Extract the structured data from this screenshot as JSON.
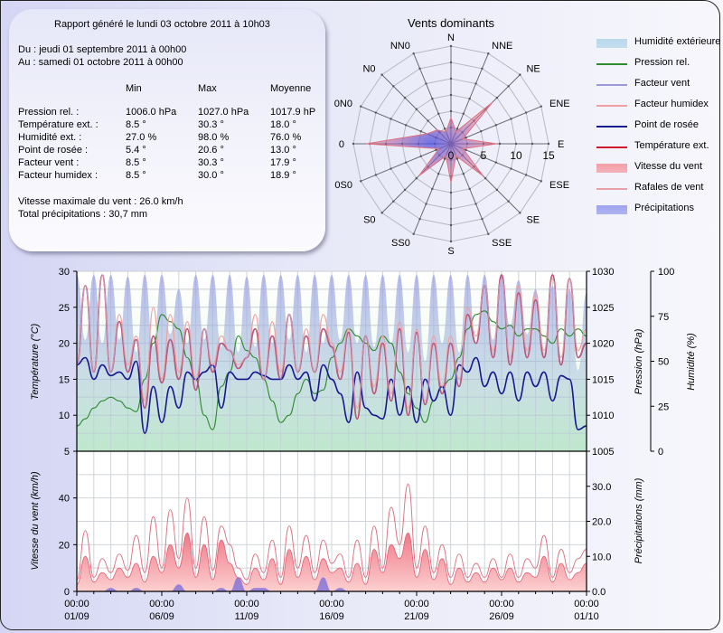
{
  "report": {
    "title": "Rapport généré le lundi 03 octobre 2011 à 10h03",
    "from": "Du : jeudi 01 septembre 2011 à 00h00",
    "to": "Au : samedi 01 octobre 2011 à 00h00",
    "columns": [
      "Min",
      "Max",
      "Moyenne"
    ],
    "rows": [
      {
        "label": "Pression rel. :",
        "min": "1006.0 hPa",
        "max": "1027.0 hPa",
        "avg": "1017.9 hPa"
      },
      {
        "label": "Température ext. :",
        "min": "8.5 °",
        "max": "30.3 °",
        "avg": "18.0 °"
      },
      {
        "label": "Humidité ext. :",
        "min": "27.0 %",
        "max": "98.0 %",
        "avg": "76.0 %"
      },
      {
        "label": "Point de rosée :",
        "min": "5.4 °",
        "max": "20.6 °",
        "avg": "13.0 °"
      },
      {
        "label": "Facteur vent :",
        "min": "8.5 °",
        "max": "30.3 °",
        "avg": "17.9 °"
      },
      {
        "label": "Facteur humidex :",
        "min": "8.5 °",
        "max": "30.0 °",
        "avg": "18.9 °"
      }
    ],
    "max_wind": "Vitesse maximale du vent : 26.0 km/h",
    "total_rain": "Total précipitations : 30,7 mm"
  },
  "legend": [
    {
      "label": "Humidité extérieure",
      "kind": "area",
      "color": "#b8d8ec"
    },
    {
      "label": "Pression rel.",
      "kind": "line",
      "color": "#2e8b2e"
    },
    {
      "label": "Facteur vent",
      "kind": "line",
      "color": "#9a9ad8"
    },
    {
      "label": "Facteur humidex",
      "kind": "line",
      "color": "#f0a0a0"
    },
    {
      "label": "Point de rosée",
      "kind": "line",
      "color": "#1a1a90"
    },
    {
      "label": "Température ext.",
      "kind": "line",
      "color": "#d01830"
    },
    {
      "label": "Vitesse du vent",
      "kind": "area",
      "color": "#f4a0a8"
    },
    {
      "label": "Rafales de vent",
      "kind": "line",
      "color": "#e8a0a8"
    },
    {
      "label": "Précipitations",
      "kind": "area",
      "color": "#9ea4ee"
    }
  ],
  "chart_data": [
    {
      "type": "radar",
      "title": "Vents dominants",
      "directions": [
        "N",
        "NNE",
        "NE",
        "ENE",
        "E",
        "ESE",
        "SE",
        "SSE",
        "S",
        "SS0",
        "S0",
        "0S0",
        "0",
        "0N0",
        "N0",
        "NN0"
      ],
      "values": [
        4,
        2,
        9,
        2,
        7,
        2,
        7,
        2,
        6,
        2,
        7,
        2,
        13,
        4,
        3,
        2
      ],
      "r_ticks": [
        0,
        5,
        10,
        15
      ],
      "r_range": [
        0,
        15
      ]
    },
    {
      "type": "line",
      "title": "",
      "x_ticks": [
        {
          "time": "00:00",
          "date": "01/09"
        },
        {
          "time": "00:00",
          "date": "06/09"
        },
        {
          "time": "00:00",
          "date": "11/09"
        },
        {
          "time": "00:00",
          "date": "16/09"
        },
        {
          "time": "00:00",
          "date": "21/09"
        },
        {
          "time": "00:00",
          "date": "26/09"
        },
        {
          "time": "00:00",
          "date": "01/10"
        }
      ],
      "x_range_days": [
        0,
        30
      ],
      "top_panel": {
        "ylabel_left": "Température (°C)",
        "ylim_left": [
          5,
          30
        ],
        "yticks_left": [
          "30",
          "25",
          "20",
          "15",
          "10",
          "5"
        ],
        "ylabel_right1": "Pression (hPa)",
        "ylim_right1": [
          1005,
          1030
        ],
        "yticks_right1": [
          "1030",
          "1025",
          "1020",
          "1015",
          "1010",
          "1005"
        ],
        "ylabel_right2": "Humidité (%)",
        "ylim_right2": [
          0,
          100
        ],
        "yticks_right2": [
          "100",
          "75",
          "50",
          "25",
          "0"
        ],
        "series": [
          {
            "name": "Humidité extérieure",
            "axis": "right2",
            "day_points": [
              98,
              62,
              98,
              60,
              98,
              62,
              97,
              55,
              98,
              58,
              98,
              65,
              90,
              60,
              98,
              62,
              98,
              58,
              98,
              55,
              97,
              58,
              98,
              60,
              98,
              62,
              98,
              55,
              98,
              60,
              98,
              62,
              98,
              60,
              98,
              58,
              98,
              60,
              98,
              55,
              98,
              50,
              98,
              60,
              98,
              55,
              98,
              60,
              98,
              62,
              98,
              70,
              95,
              65,
              90,
              55,
              92,
              50,
              90,
              45,
              88
            ]
          },
          {
            "name": "Pression rel.",
            "axis": "right1",
            "day_points": [
              1008.5,
              1009.5,
              1011,
              1012,
              1012.5,
              1012,
              1011,
              1010.5,
              1015,
              1020,
              1024,
              1023,
              1022,
              1018,
              1015,
              1010,
              1008,
              1014,
              1016,
              1021,
              1019,
              1018,
              1015,
              1012,
              1009,
              1010,
              1013,
              1015,
              1013,
              1013.5,
              1018,
              1020,
              1022,
              1021,
              1020,
              1019,
              1021,
              1020,
              1016,
              1013,
              1011,
              1009,
              1012,
              1014,
              1015,
              1018,
              1022,
              1024,
              1024.5,
              1023,
              1022,
              1022.5,
              1021,
              1022,
              1022,
              1021,
              1020,
              1022,
              1021,
              1022,
              1021
            ]
          },
          {
            "name": "Température ext.",
            "axis": "left",
            "day_points": [
              17,
              28,
              16,
              29.5,
              16,
              23,
              16,
              20.5,
              11,
              21,
              14.5,
              20.5,
              15,
              22,
              13.5,
              22,
              16,
              20,
              19,
              16.5,
              18,
              22,
              15,
              21,
              15,
              24,
              16,
              21,
              16,
              22,
              19.5,
              15,
              21.5,
              9.5,
              21,
              13,
              20,
              12,
              22,
              10,
              21.5,
              11.5,
              20,
              13,
              20,
              14,
              24,
              20,
              28,
              18,
              29.5,
              17,
              27,
              18,
              26,
              18,
              29.5,
              17,
              29,
              18,
              20
            ]
          },
          {
            "name": "Point de rosée",
            "axis": "left",
            "day_points": [
              17,
              18,
              15,
              17,
              15.5,
              16,
              15,
              17.5,
              7.5,
              14,
              9,
              14,
              11,
              16,
              15,
              16,
              17,
              11,
              16,
              15,
              15,
              16,
              15.5,
              15,
              15,
              17,
              15,
              16,
              12,
              17,
              15,
              13,
              9,
              16,
              11,
              10,
              9.5,
              15,
              10,
              14,
              9,
              15,
              12,
              14,
              10,
              17,
              16,
              18,
              14,
              16,
              13,
              16,
              12,
              16,
              14,
              16,
              12,
              15.5,
              15,
              8,
              8.5
            ]
          },
          {
            "name": "Facteur humidex",
            "axis": "left",
            "day_points": [
              17,
              28,
              16,
              29.5,
              16,
              24,
              17,
              21,
              12,
              25,
              15,
              24,
              16,
              23,
              15,
              22,
              17,
              21,
              19,
              17,
              18,
              24,
              15,
              23,
              16,
              24,
              16,
              22,
              16,
              24,
              20,
              16,
              22,
              11,
              21,
              14,
              21,
              13,
              23,
              11,
              22,
              12,
              21,
              14,
              21,
              15,
              25,
              21,
              28,
              19,
              29,
              18,
              28,
              19,
              27,
              19,
              29,
              18,
              29,
              19,
              22
            ]
          },
          {
            "name": "Facteur vent",
            "axis": "left",
            "day_points": [
              17,
              28,
              16,
              29.5,
              16,
              23,
              16,
              20.5,
              11,
              21,
              14.5,
              20.5,
              15,
              22,
              13.5,
              22,
              16,
              20,
              19,
              16.5,
              18,
              22,
              15,
              21,
              15,
              24,
              16,
              21,
              16,
              22,
              19.5,
              15,
              21.5,
              9.5,
              21,
              13,
              20,
              12,
              22,
              10,
              21.5,
              11.5,
              20,
              13,
              20,
              14,
              24,
              20,
              28,
              18,
              29.5,
              17,
              27,
              18,
              26,
              18,
              29.5,
              17,
              29,
              18,
              20
            ]
          }
        ]
      },
      "bottom_panel": {
        "ylabel_left": "Vitesse du vent (km/h)",
        "ylim_left": [
          0,
          60
        ],
        "yticks_left": [
          "40",
          "20",
          "0"
        ],
        "ylabel_right": "Précipitations (mm)",
        "ylim_right": [
          0,
          40
        ],
        "yticks_right": [
          "30.0",
          "20.0",
          "10.0",
          "0.0"
        ],
        "series": [
          {
            "name": "Vitesse du vent",
            "axis": "left",
            "day_points": [
              3,
              15,
              4,
              8,
              5,
              10,
              6,
              12,
              4,
              15,
              8,
              20,
              10,
              25,
              6,
              20,
              5,
              22,
              12,
              6,
              3,
              10,
              5,
              14,
              3,
              18,
              6,
              15,
              5,
              14,
              8,
              10,
              4,
              12,
              3,
              18,
              8,
              20,
              14,
              25,
              6,
              18,
              5,
              14,
              3,
              10,
              4,
              8,
              4,
              10,
              5,
              10,
              4,
              8,
              6,
              15,
              4,
              12,
              5,
              8,
              12
            ]
          },
          {
            "name": "Rafales de vent",
            "axis": "left",
            "day_points": [
              5,
              26,
              6,
              14,
              8,
              16,
              9,
              24,
              8,
              32,
              10,
              35,
              14,
              40,
              10,
              32,
              9,
              28,
              20,
              10,
              5,
              16,
              8,
              22,
              6,
              28,
              10,
              24,
              8,
              22,
              12,
              16,
              6,
              22,
              6,
              28,
              10,
              36,
              20,
              46,
              10,
              28,
              8,
              20,
              6,
              16,
              6,
              12,
              6,
              14,
              6,
              16,
              6,
              14,
              10,
              24,
              6,
              18,
              8,
              14,
              18
            ]
          },
          {
            "name": "Précipitations",
            "axis": "right",
            "day_points": [
              0,
              0,
              0,
              0,
              1,
              0,
              0,
              1,
              0,
              0,
              0,
              0,
              2,
              0,
              0,
              0,
              0,
              1,
              0,
              4,
              0,
              1,
              1,
              0,
              0,
              0,
              0,
              0,
              0,
              4,
              0,
              1,
              0,
              0,
              0,
              0,
              0,
              0,
              0,
              0,
              0,
              0,
              0,
              0,
              0,
              0,
              0,
              0,
              0,
              0,
              0,
              0,
              0,
              0,
              0,
              0,
              0,
              0,
              0,
              0,
              0
            ]
          }
        ]
      }
    }
  ]
}
